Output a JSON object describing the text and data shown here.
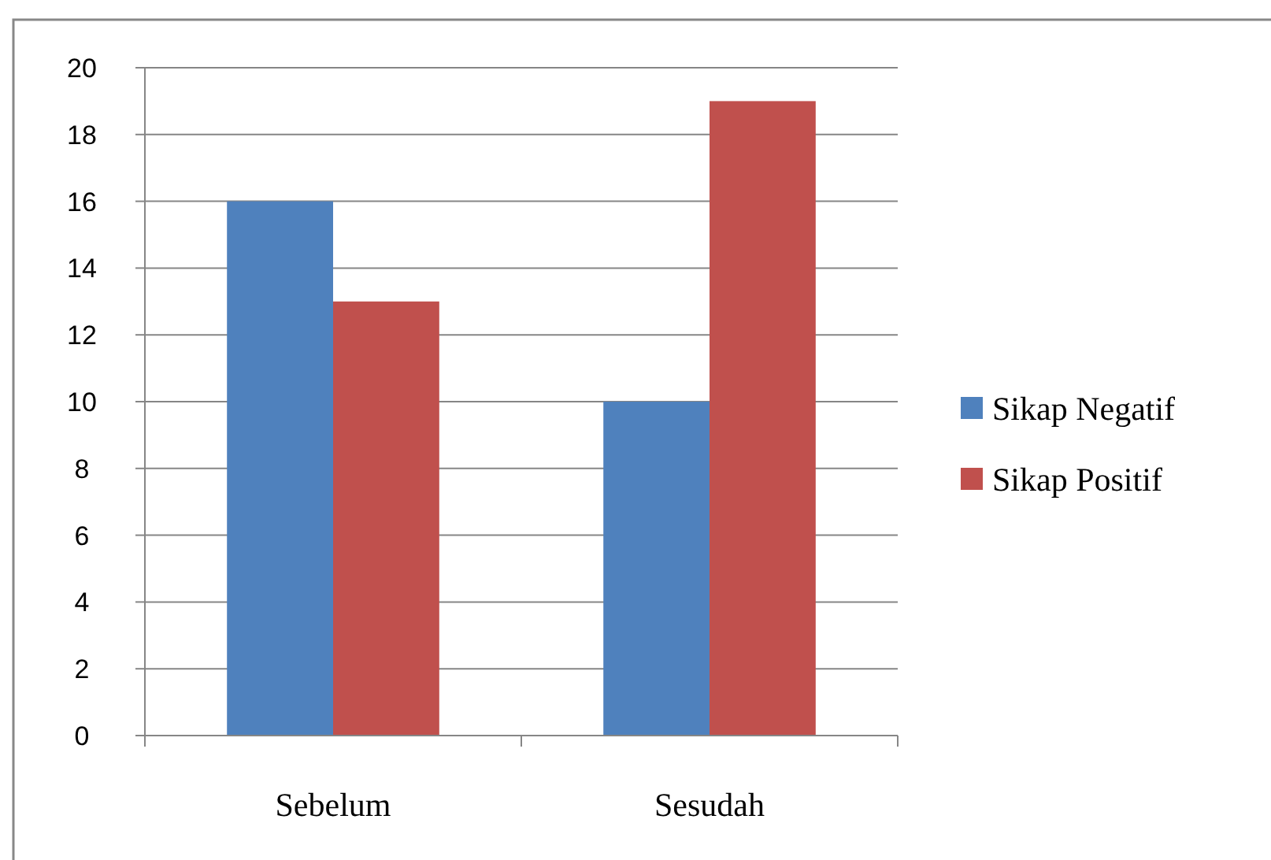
{
  "chart_data": {
    "type": "bar",
    "categories": [
      "Sebelum",
      "Sesudah"
    ],
    "series": [
      {
        "name": "Sikap Negatif",
        "color": "#4f81bd",
        "values": [
          16,
          10
        ]
      },
      {
        "name": "Sikap Positif",
        "color": "#c0504d",
        "values": [
          13,
          19
        ]
      }
    ],
    "ylim": [
      0,
      20
    ],
    "yticks": [
      0,
      2,
      4,
      6,
      8,
      10,
      12,
      14,
      16,
      18,
      20
    ],
    "grid": "y",
    "legend": "right"
  }
}
